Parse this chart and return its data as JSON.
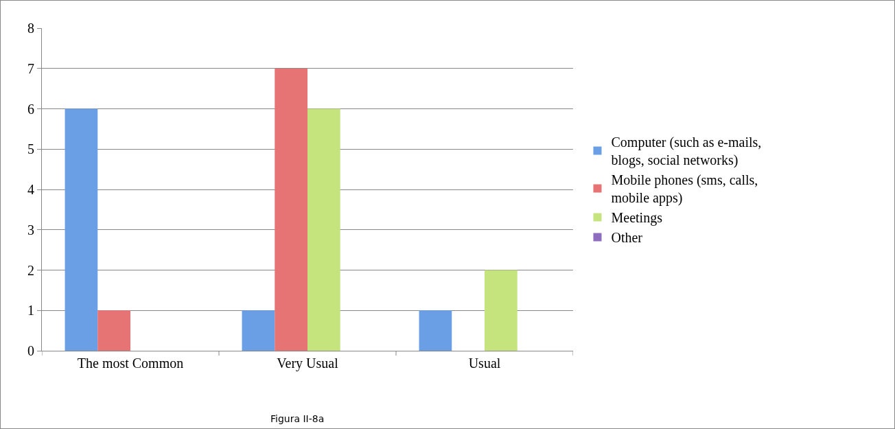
{
  "chart_data": {
    "type": "bar",
    "categories": [
      "The most Common",
      "Very Usual",
      "Usual"
    ],
    "series": [
      {
        "name": "Computer (such as e-mails, blogs, social networks)",
        "color": "#6a9fe6",
        "values": [
          6,
          1,
          1
        ]
      },
      {
        "name": "Mobile phones (sms, calls, mobile apps)",
        "color": "#e67474",
        "values": [
          1,
          7,
          0
        ]
      },
      {
        "name": "Meetings",
        "color": "#c6e47e",
        "values": [
          0,
          6,
          2
        ]
      },
      {
        "name": "Other",
        "color": "#8e6cc0",
        "values": [
          0,
          0,
          0
        ]
      }
    ],
    "ylim": [
      0,
      8
    ],
    "yticks": [
      0,
      1,
      2,
      3,
      4,
      5,
      6,
      7,
      8
    ],
    "grid": "y",
    "legend": "right",
    "annotations": [
      "Figura II-8a"
    ]
  }
}
